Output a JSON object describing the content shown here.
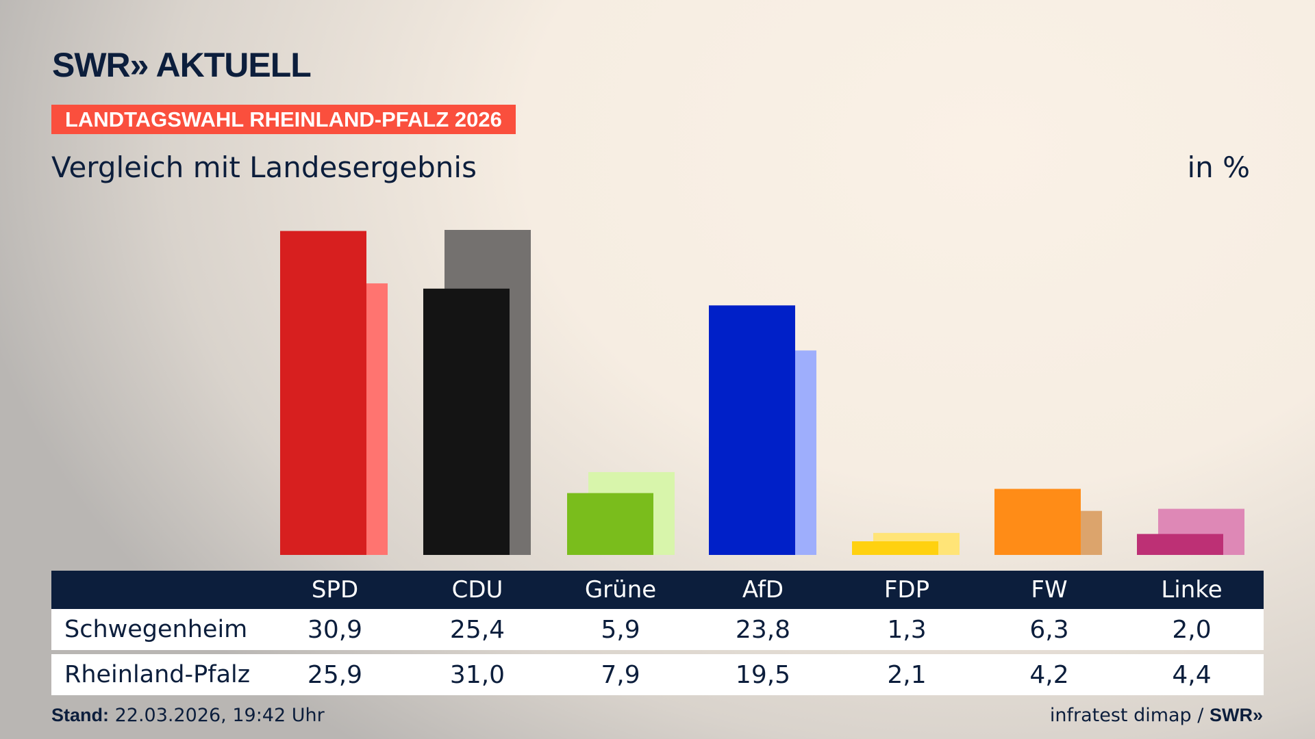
{
  "header": {
    "logo": "SWR» AKTUELL",
    "badge": "LANDTAGSWAHL RHEINLAND-PFALZ 2026",
    "subtitle": "Vergleich mit Landesergebnis",
    "unit": "in %"
  },
  "chart_data": {
    "type": "bar",
    "categories": [
      "SPD",
      "CDU",
      "Grüne",
      "AfD",
      "FDP",
      "FW",
      "Linke"
    ],
    "series": [
      {
        "name": "Schwegenheim",
        "values": [
          30.9,
          25.4,
          5.9,
          23.8,
          1.3,
          6.3,
          2.0
        ]
      },
      {
        "name": "Rheinland-Pfalz",
        "values": [
          25.9,
          31.0,
          7.9,
          19.5,
          2.1,
          4.2,
          4.4
        ]
      }
    ],
    "display_values": [
      [
        "30,9",
        "25,4",
        "5,9",
        "23,8",
        "1,3",
        "6,3",
        "2,0"
      ],
      [
        "25,9",
        "31,0",
        "7,9",
        "19,5",
        "2,1",
        "4,2",
        "4,4"
      ]
    ],
    "colors": {
      "primary": [
        "#d71f1f",
        "#141414",
        "#7abd1c",
        "#0020c8",
        "#ffd110",
        "#ff8c17",
        "#bd3075"
      ],
      "secondary": [
        "#ff7470",
        "#74716f",
        "#d8f5ab",
        "#9eaefc",
        "#ffe477",
        "#dca46c",
        "#de88b6"
      ]
    },
    "ylim": [
      0,
      31
    ],
    "grid": false
  },
  "footer": {
    "stand_label": "Stand:",
    "stand_value": "22.03.2026, 19:42 Uhr",
    "source": "infratest dimap /",
    "source_logo": "SWR»"
  }
}
